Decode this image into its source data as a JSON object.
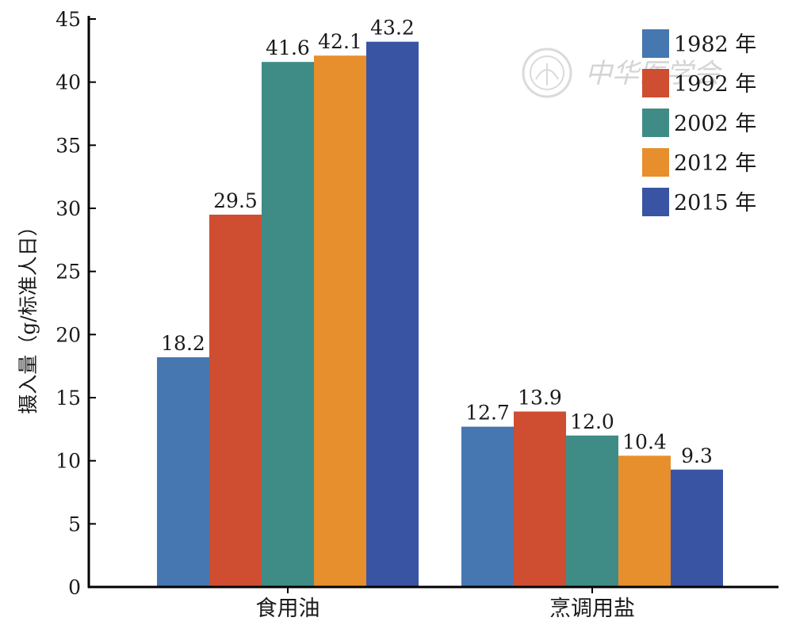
{
  "chart_data": {
    "type": "bar",
    "categories": [
      "食用油",
      "烹调用盐"
    ],
    "series": [
      {
        "name": "1982 年",
        "values": [
          18.2,
          12.7
        ],
        "color": "#4677b0"
      },
      {
        "name": "1992 年",
        "values": [
          29.5,
          13.9
        ],
        "color": "#cf4d31"
      },
      {
        "name": "2002 年",
        "values": [
          41.6,
          12.0
        ],
        "color": "#3f8c86"
      },
      {
        "name": "2012 年",
        "values": [
          42.1,
          10.4
        ],
        "color": "#e68f2c"
      },
      {
        "name": "2015 年",
        "values": [
          43.2,
          9.3
        ],
        "color": "#3a54a4"
      }
    ],
    "data_labels": [
      [
        "18.2",
        "29.5",
        "41.6",
        "42.1",
        "43.2"
      ],
      [
        "12.7",
        "13.9",
        "12.0",
        "10.4",
        "9.3"
      ]
    ],
    "ylabel": "摄入量（g/标准人日）",
    "xlabel": "",
    "ylim": [
      0,
      45
    ],
    "yticks": [
      0,
      5,
      10,
      15,
      20,
      25,
      30,
      35,
      40,
      45
    ],
    "grid": false,
    "legend_position": "top-right"
  },
  "watermark": {
    "text": "中华医学会",
    "icon": "society-seal-icon"
  }
}
